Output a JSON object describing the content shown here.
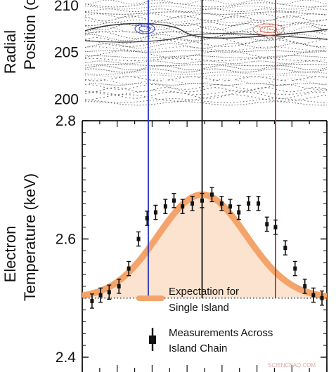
{
  "colors": {
    "expectation_line": "#f4a46a",
    "expectation_fill": "#fbe3d0",
    "blue_marker": "#1f2fb5",
    "black_marker": "#111111",
    "red_marker": "#d42a2a",
    "poincare_ink": "#444444"
  },
  "top_panel": {
    "ylabel_line1": "Radial",
    "ylabel_line2": "Position (c",
    "ticks": [
      "210",
      "205",
      "200"
    ],
    "ytick_values": [
      210,
      205,
      200
    ],
    "ylim": [
      199.2,
      210.6
    ]
  },
  "chart_data": {
    "type": "scatter",
    "ylabel_line1": "Electron",
    "ylabel_line2": "Temperature (keV)",
    "yticks": [
      "2.8",
      "2.6",
      "2.4"
    ],
    "ytick_values": [
      2.8,
      2.6,
      2.4
    ],
    "ylim": [
      2.375,
      2.8
    ],
    "xlim": [
      0,
      100
    ],
    "baseline": 2.5,
    "legend_placement": "bottom-center",
    "series": [
      {
        "name": "Expectation for Single Island",
        "kind": "curve",
        "peak": 2.675,
        "center": 49,
        "width": 18
      },
      {
        "name": "Measurements Across Island Chain",
        "kind": "points-with-error",
        "x": [
          4,
          7.5,
          11,
          15,
          19,
          23,
          26.5,
          30,
          34,
          37.5,
          41,
          45,
          49,
          53,
          57,
          60.5,
          64,
          68,
          72,
          75.5,
          79,
          83,
          87,
          91,
          94.5,
          98
        ],
        "y": [
          2.495,
          2.505,
          2.51,
          2.52,
          2.55,
          2.6,
          2.635,
          2.645,
          2.655,
          2.665,
          2.655,
          2.66,
          2.665,
          2.675,
          2.66,
          2.655,
          2.645,
          2.66,
          2.66,
          2.625,
          2.62,
          2.585,
          2.55,
          2.52,
          2.505,
          2.5
        ],
        "err": 0.012
      }
    ],
    "markers": [
      {
        "name": "blue",
        "x": 27
      },
      {
        "name": "black",
        "x": 49
      },
      {
        "name": "red",
        "x": 79
      }
    ]
  },
  "legend": {
    "expectation_line1": "Expectation for",
    "expectation_line2": "Single Island",
    "measurement_line1": "Measurements Across",
    "measurement_line2": "Island Chain"
  },
  "watermark": "SCIENCEAQ.COM"
}
